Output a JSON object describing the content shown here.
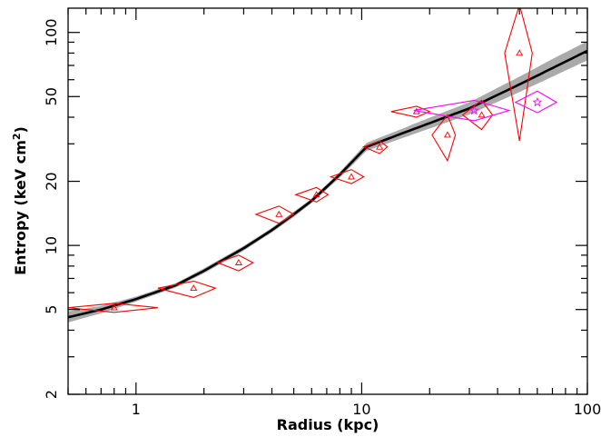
{
  "chart_data": {
    "type": "scatter",
    "title": "",
    "xlabel": "Radius (kpc)",
    "ylabel_main": "Entropy (keV cm",
    "ylabel_sup": "2",
    "ylabel_close": ")",
    "xscale": "log",
    "yscale": "log",
    "xlim": [
      0.5,
      100
    ],
    "ylim": [
      2,
      130
    ],
    "grid": false,
    "legend": "none",
    "x_ticks": [
      {
        "value": 1,
        "label": "1"
      },
      {
        "value": 10,
        "label": "10"
      },
      {
        "value": 100,
        "label": "100"
      }
    ],
    "y_ticks": [
      {
        "value": 2,
        "label": "2"
      },
      {
        "value": 5,
        "label": "5"
      },
      {
        "value": 10,
        "label": "10"
      },
      {
        "value": 20,
        "label": "20"
      },
      {
        "value": 50,
        "label": "50"
      },
      {
        "value": 100,
        "label": "100"
      }
    ],
    "model_curve": {
      "color": "#000000",
      "band_color": "#aaaaaa",
      "points": [
        {
          "x": 0.5,
          "y": 4.6,
          "lo": 4.35,
          "hi": 4.9
        },
        {
          "x": 0.7,
          "y": 5.0,
          "lo": 4.8,
          "hi": 5.2
        },
        {
          "x": 1.0,
          "y": 5.6,
          "lo": 5.45,
          "hi": 5.75
        },
        {
          "x": 1.5,
          "y": 6.5,
          "lo": 6.35,
          "hi": 6.65
        },
        {
          "x": 2.0,
          "y": 7.6,
          "lo": 7.4,
          "hi": 7.8
        },
        {
          "x": 3.0,
          "y": 9.7,
          "lo": 9.45,
          "hi": 9.95
        },
        {
          "x": 4.0,
          "y": 11.8,
          "lo": 11.5,
          "hi": 12.1
        },
        {
          "x": 5.0,
          "y": 14.0,
          "lo": 13.6,
          "hi": 14.4
        },
        {
          "x": 6.0,
          "y": 16.2,
          "lo": 15.8,
          "hi": 16.6
        },
        {
          "x": 8.0,
          "y": 21.5,
          "lo": 20.8,
          "hi": 22.1
        },
        {
          "x": 10.5,
          "y": 29.0,
          "lo": 27.8,
          "hi": 30.3
        },
        {
          "x": 15.0,
          "y": 33.5,
          "lo": 31.8,
          "hi": 35.2
        },
        {
          "x": 20.0,
          "y": 37.5,
          "lo": 35.4,
          "hi": 39.8
        },
        {
          "x": 30.0,
          "y": 44.0,
          "lo": 41.2,
          "hi": 47.0
        },
        {
          "x": 50.0,
          "y": 57.0,
          "lo": 52.5,
          "hi": 62.0
        },
        {
          "x": 70.0,
          "y": 68.0,
          "lo": 62.0,
          "hi": 75.0
        },
        {
          "x": 100.0,
          "y": 82.0,
          "lo": 74.0,
          "hi": 91.0
        }
      ]
    },
    "series": [
      {
        "marker": "triangle",
        "color": "#ff0000",
        "points": [
          {
            "x": 0.8,
            "y": 5.1,
            "xlo": 0.5,
            "xhi": 1.25,
            "ylo": 4.85,
            "yhi": 5.35
          },
          {
            "x": 1.8,
            "y": 6.3,
            "xlo": 1.25,
            "xhi": 2.25,
            "ylo": 5.7,
            "yhi": 6.8
          },
          {
            "x": 2.85,
            "y": 8.3,
            "xlo": 2.3,
            "xhi": 3.3,
            "ylo": 7.6,
            "yhi": 9.0
          },
          {
            "x": 4.3,
            "y": 14.0,
            "xlo": 3.4,
            "xhi": 5.0,
            "ylo": 12.7,
            "yhi": 15.3
          },
          {
            "x": 6.3,
            "y": 17.3,
            "xlo": 5.1,
            "xhi": 7.1,
            "ylo": 16.0,
            "yhi": 18.7
          },
          {
            "x": 9.0,
            "y": 21.0,
            "xlo": 7.3,
            "xhi": 10.2,
            "ylo": 19.5,
            "yhi": 22.7
          },
          {
            "x": 12.0,
            "y": 29.0,
            "xlo": 10.2,
            "xhi": 13.0,
            "ylo": 27.0,
            "yhi": 31.0
          },
          {
            "x": 17.5,
            "y": 42.5,
            "xlo": 13.5,
            "xhi": 20.0,
            "ylo": 40.0,
            "yhi": 45.0
          },
          {
            "x": 24.0,
            "y": 33.0,
            "xlo": 20.5,
            "xhi": 26.0,
            "ylo": 25.0,
            "yhi": 41.0
          },
          {
            "x": 34.0,
            "y": 41.0,
            "xlo": 28.0,
            "xhi": 38.0,
            "ylo": 35.0,
            "yhi": 48.0
          },
          {
            "x": 50.0,
            "y": 80.0,
            "xlo": 43.0,
            "xhi": 57.0,
            "ylo": 31.0,
            "yhi": 135.0
          }
        ]
      },
      {
        "marker": "star",
        "color": "#ff00ff",
        "points": [
          {
            "x": 31.5,
            "y": 43.0,
            "xlo": 17.0,
            "xhi": 45.0,
            "ylo": 38.5,
            "yhi": 48.0
          },
          {
            "x": 60.0,
            "y": 47.0,
            "xlo": 48.0,
            "xhi": 73.0,
            "ylo": 42.0,
            "yhi": 53.0
          }
        ]
      }
    ]
  }
}
